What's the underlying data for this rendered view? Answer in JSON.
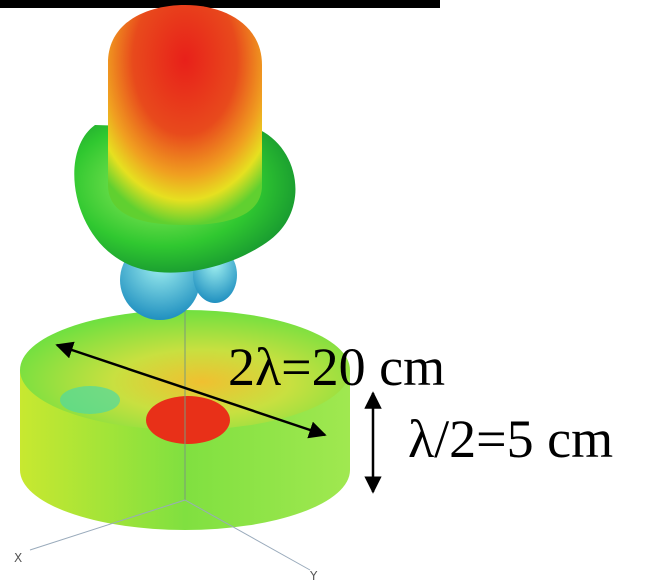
{
  "annotations": {
    "diameter": "2λ=20 cm",
    "height": "λ/2=5 cm"
  },
  "axes": {
    "x": "X",
    "y": "Y"
  }
}
